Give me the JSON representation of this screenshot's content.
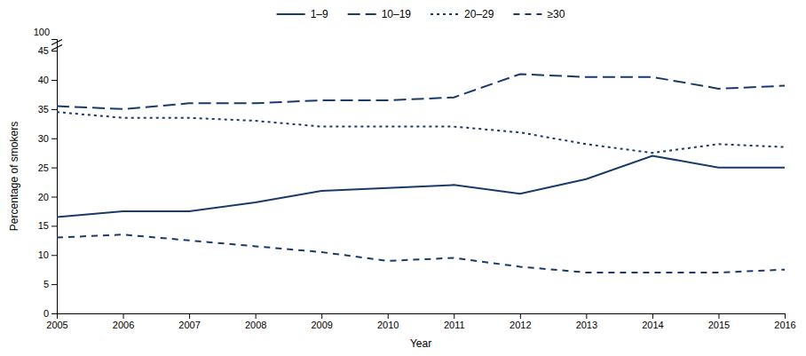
{
  "chart_data": {
    "type": "line",
    "x_label": "Year",
    "y_label": "Percentage of smokers",
    "x": [
      2005,
      2006,
      2007,
      2008,
      2009,
      2010,
      2011,
      2012,
      2013,
      2014,
      2015,
      2016
    ],
    "series": [
      {
        "name": "1–9",
        "color": "#1a3a6b",
        "line_style": "solid",
        "values": [
          16.5,
          17.5,
          17.5,
          19.0,
          21.0,
          21.5,
          22.0,
          20.5,
          23.0,
          27.0,
          25.0,
          25.0
        ]
      },
      {
        "name": "10–19",
        "color": "#1a3a6b",
        "line_style": "dashed",
        "values": [
          35.5,
          35.0,
          36.0,
          36.0,
          36.5,
          36.5,
          37.0,
          41.0,
          40.5,
          40.5,
          38.5,
          39.0
        ]
      },
      {
        "name": "20–29",
        "color": "#1a3a6b",
        "line_style": "dotted",
        "values": [
          34.5,
          33.5,
          33.5,
          33.0,
          32.0,
          32.0,
          32.0,
          31.0,
          29.0,
          27.5,
          29.0,
          28.5
        ]
      },
      {
        "name": "≥30",
        "color": "#1a3a6b",
        "line_style": "short-dashed",
        "values": [
          13.0,
          13.5,
          12.5,
          11.5,
          10.5,
          9.0,
          9.5,
          8.0,
          7.0,
          7.0,
          7.0,
          7.5
        ]
      }
    ],
    "xlim": [
      2005,
      2016
    ],
    "xticks": [
      2005,
      2006,
      2007,
      2008,
      2009,
      2010,
      2011,
      2012,
      2013,
      2014,
      2015,
      2016
    ],
    "ylim": [
      0,
      47
    ],
    "yticks": [
      0,
      5,
      10,
      15,
      20,
      25,
      30,
      35,
      40,
      45
    ],
    "annotations": [
      "100"
    ],
    "legend": "top",
    "grid": false
  }
}
